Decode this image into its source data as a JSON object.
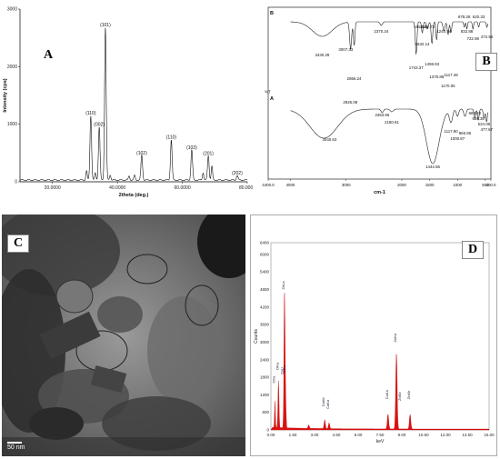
{
  "chart_data": [
    {
      "panel": "A",
      "type": "line",
      "ylabel": "Intensity (cps)",
      "xlabel": "2theta (deg.)",
      "xlim": [
        10,
        80
      ],
      "ylim": [
        0,
        3000
      ],
      "x_ticks": [
        "20.0000",
        "40.0000",
        "60.0000",
        "80.0000"
      ],
      "y_ticks": [
        "0",
        "1000",
        "2000",
        "3000"
      ],
      "peaks": [
        {
          "x": 31.8,
          "y": 1120,
          "label": "(110)"
        },
        {
          "x": 34.4,
          "y": 920,
          "label": "(002)"
        },
        {
          "x": 36.3,
          "y": 2650,
          "label": "(101)"
        },
        {
          "x": 47.5,
          "y": 430,
          "label": "(102)"
        },
        {
          "x": 56.6,
          "y": 700,
          "label": "(110)"
        },
        {
          "x": 62.9,
          "y": 520,
          "label": "(103)"
        },
        {
          "x": 68.0,
          "y": 420,
          "label": "(201)"
        },
        {
          "x": 76.9,
          "y": 80,
          "label": "(202)"
        }
      ],
      "minor_peaks": [
        {
          "x": 30.5,
          "y": 160
        },
        {
          "x": 33.2,
          "y": 120
        },
        {
          "x": 37.8,
          "y": 90
        },
        {
          "x": 43.6,
          "y": 70
        },
        {
          "x": 45.3,
          "y": 80
        },
        {
          "x": 66.4,
          "y": 130
        },
        {
          "x": 69.1,
          "y": 240
        }
      ]
    },
    {
      "panel": "B",
      "type": "line",
      "ylabel": "%T",
      "xlabel": "cm-1",
      "xlim": [
        4400,
        400
      ],
      "x_ticks": [
        "4400.0",
        "4000",
        "3000",
        "2000",
        "1500",
        "1000",
        "500",
        "400.0"
      ],
      "series": [
        {
          "name": "B",
          "labels": [
            "3430.29",
            "3007.33",
            "2856.24",
            "2926.08",
            "2370.34",
            "1743.37",
            "1654.25",
            "1632.14",
            "1542.73",
            "1459.93",
            "1375.88",
            "1244.94",
            "1170.06",
            "1117.48",
            "878.28",
            "832.88",
            "722.98",
            "620.33",
            "472.56"
          ]
        },
        {
          "name": "A",
          "labels": [
            "3040.63",
            "2353.96",
            "2180.91",
            "1444.56",
            "1117.80",
            "1000.87",
            "866.96",
            "689.20",
            "626.38",
            "524.09",
            "477.67"
          ]
        }
      ]
    },
    {
      "panel": "D",
      "type": "bar",
      "ylabel": "Counts",
      "xlabel": "keV",
      "xlim": [
        0,
        15
      ],
      "ylim": [
        0,
        6400
      ],
      "y_ticks": [
        "0",
        "600",
        "1200",
        "1800",
        "2400",
        "3000",
        "3600",
        "4200",
        "4800",
        "5400",
        "6000",
        "6400"
      ],
      "x_ticks": [
        "0.00",
        "1.50",
        "3.00",
        "4.50",
        "6.00",
        "7.50",
        "9.00",
        "10.50",
        "12.00",
        "13.50",
        "15.00"
      ],
      "peak_labels": [
        "ZnLa",
        "OKa",
        "CKa",
        "ZnLl",
        "ClLa",
        "CaKb",
        "CaKa",
        "CuKa",
        "ZnKa",
        "ZnKb",
        "ZnKb"
      ]
    }
  ],
  "panels": {
    "a": "A",
    "b": "B",
    "c": "C",
    "d": "D"
  },
  "scalebar": "50 nm"
}
